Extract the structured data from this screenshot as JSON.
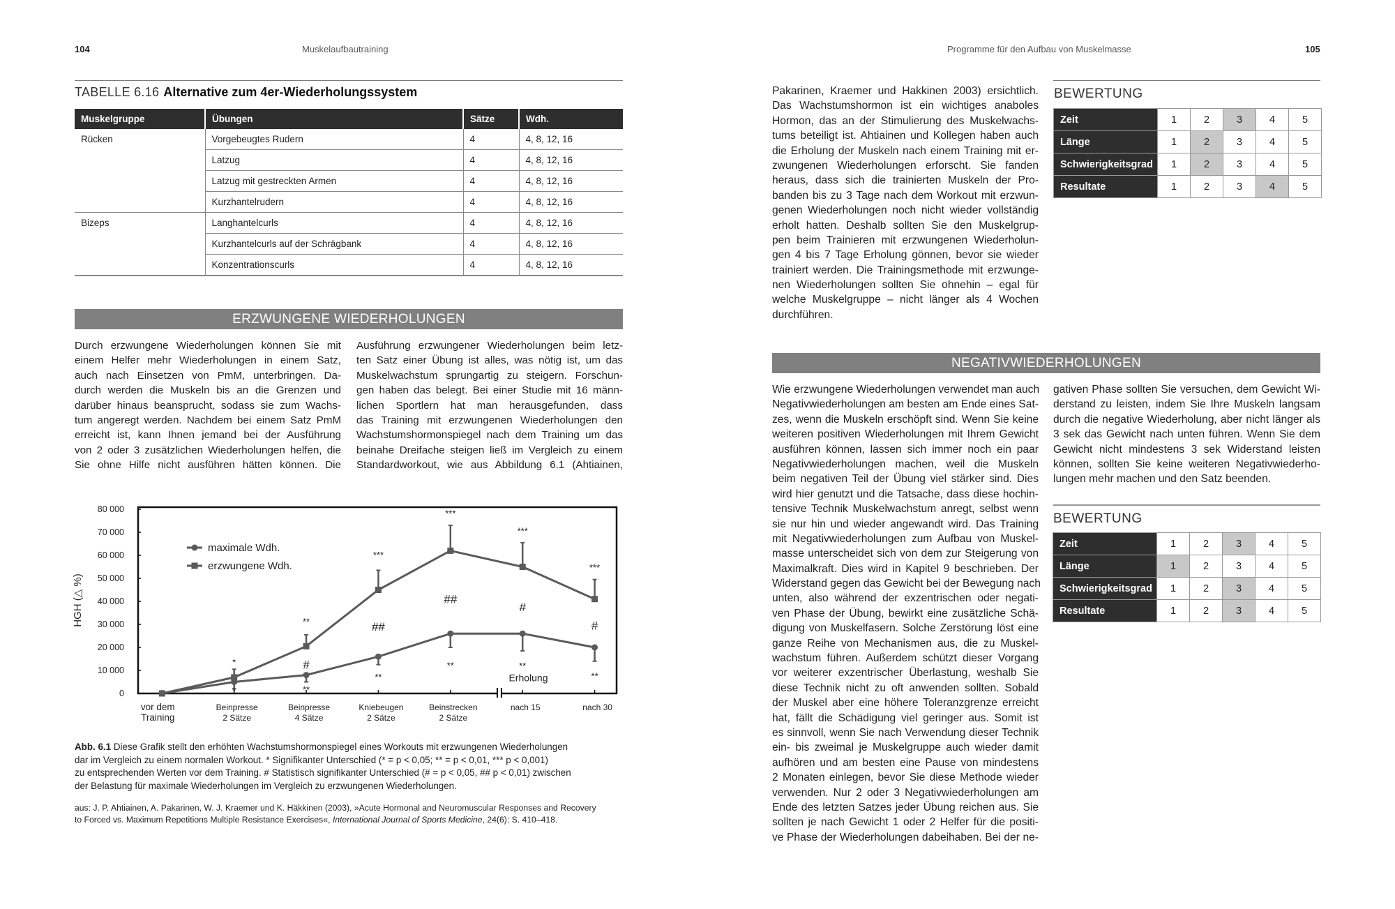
{
  "left_page": {
    "page_number": "104",
    "running_head": "Muskelaufbautraining",
    "table": {
      "prefix": "TABELLE 6.16",
      "title": "Alternative zum 4er-Wiederholungssystem",
      "headers": [
        "Muskelgruppe",
        "Übungen",
        "Sätze",
        "Wdh."
      ],
      "rows": [
        {
          "group": "Rücken",
          "exercise": "Vorgebeugtes Rudern",
          "sets": "4",
          "reps": "4, 8, 12, 16"
        },
        {
          "group": "",
          "exercise": "Latzug",
          "sets": "4",
          "reps": "4, 8, 12, 16"
        },
        {
          "group": "",
          "exercise": "Latzug mit gestreckten Armen",
          "sets": "4",
          "reps": "4, 8, 12, 16"
        },
        {
          "group": "",
          "exercise": "Kurzhantelrudern",
          "sets": "4",
          "reps": "4, 8, 12, 16"
        },
        {
          "group": "Bizeps",
          "exercise": "Langhantelcurls",
          "sets": "4",
          "reps": "4, 8, 12, 16"
        },
        {
          "group": "",
          "exercise": "Kurzhantelcurls auf der Schrägbank",
          "sets": "4",
          "reps": "4, 8, 12, 16"
        },
        {
          "group": "",
          "exercise": "Konzentrationscurls",
          "sets": "4",
          "reps": "4, 8, 12, 16"
        }
      ]
    },
    "section_title": "ERZWUNGENE WIEDERHOLUNGEN",
    "column1": [
      "Durch erzwungene Wiederholungen können Sie mit",
      "einem Helfer mehr Wiederholungen in einem Satz,",
      "auch nach Einsetzen von PmM, unterbringen. Da-",
      "durch werden die Muskeln bis an die Grenzen und",
      "darüber hinaus beansprucht, sodass sie zum Wachs-",
      "tum angeregt werden. Nachdem bei einem Satz PmM",
      "erreicht ist, kann Ihnen jemand bei der Ausführung",
      "von 2 oder 3 zusätzlichen Wiederholungen helfen, die",
      "Sie ohne Hilfe nicht ausführen hätten können. Die"
    ],
    "column2": [
      "Ausführung erzwungener Wiederholungen beim letz-",
      "ten Satz einer Übung ist alles, was nötig ist, um das",
      "Muskelwachstum sprungartig zu steigern. Forschun-",
      "gen haben das belegt. Bei einer Studie mit 16 männ-",
      "lichen Sportlern hat man herausgefunden, dass",
      "das Training mit erzwungenen Wiederholungen den",
      "Wachstumshormonspiegel nach dem Training um das",
      "beinahe Dreifache steigen ließ im Vergleich zu einem",
      "Standardworkout, wie aus Abbildung 6.1 (Ahtiainen,"
    ],
    "caption": {
      "label": "Abb. 6.1",
      "lines": [
        "Diese Grafik stellt den erhöhten Wachstumshormonspiegel eines Workouts mit erzwungenen Wiederholungen",
        "dar im Vergleich zu einem normalen Workout. * Signifikanter Unterschied (* = p < 0,05; ** = p < 0,01, *** p < 0,001)",
        "zu entsprechenden Werten vor dem Training. # Statistisch signifikanter Unterschied (# = p < 0,05, ## p < 0,01) zwischen",
        "der Belastung für maximale Wiederholungen im Vergleich zu erzwungenen Wiederholungen."
      ]
    },
    "source": {
      "line1": "aus: J. P. Ahtiainen, A. Pakarinen, W. J. Kraemer und K. Häkkinen (2003), »Acute Hormonal and Neuromuscular Responses and Recovery",
      "line2_start": "to Forced vs. Maximum Repetitions Multiple Resistance Exercises«, ",
      "journal": "International Journal of Sports Medicine",
      "line2_end": ", 24(6): S. 410–418."
    }
  },
  "chart_data": {
    "type": "line",
    "title": "",
    "xlabel": "",
    "ylabel": "HGH (△ %)",
    "ylim": [
      0,
      80000
    ],
    "yticks": [
      "0",
      "10 000",
      "20 000",
      "30 000",
      "40 000",
      "50 000",
      "60 000",
      "70 000",
      "80 000"
    ],
    "categories": [
      [
        "vor dem",
        "Training"
      ],
      [
        "Beinpresse",
        "2 Sätze"
      ],
      [
        "Beinpresse",
        "4 Sätze"
      ],
      [
        "Kniebeugen",
        "2 Sätze"
      ],
      [
        "Beinstrecken",
        "2 Sätze"
      ],
      [
        "nach 15",
        ""
      ],
      [
        "nach 30",
        ""
      ]
    ],
    "axis_break_after_index": 4,
    "legend_position": "top-left",
    "grid": false,
    "series": [
      {
        "name": "maximale Wdh.",
        "marker": "circle",
        "values": [
          0,
          5000,
          8000,
          16000,
          26000,
          26000,
          20000
        ],
        "error_low": [
          0,
          2000,
          5000,
          12500,
          20000,
          18500,
          14000
        ]
      },
      {
        "name": "erzwungene Wdh.",
        "marker": "square",
        "values": [
          0,
          7000,
          20500,
          45000,
          62000,
          55000,
          41000
        ],
        "error_high": [
          0,
          10500,
          25500,
          53500,
          73000,
          65500,
          49500
        ]
      }
    ],
    "annotations": [
      {
        "x": 1,
        "y": 13500,
        "text": "*"
      },
      {
        "x": 1,
        "y": 1000,
        "text": "*"
      },
      {
        "x": 2,
        "y": 31000,
        "text": "**"
      },
      {
        "x": 2,
        "y": 12000,
        "text": "#"
      },
      {
        "x": 2,
        "y": 1500,
        "text": "**"
      },
      {
        "x": 3,
        "y": 60000,
        "text": "***"
      },
      {
        "x": 3,
        "y": 28500,
        "text": "##"
      },
      {
        "x": 3,
        "y": 7000,
        "text": "**"
      },
      {
        "x": 4,
        "y": 78000,
        "text": "***"
      },
      {
        "x": 4,
        "y": 40500,
        "text": "##"
      },
      {
        "x": 4,
        "y": 12000,
        "text": "**"
      },
      {
        "x": 5,
        "y": 70500,
        "text": "***"
      },
      {
        "x": 5,
        "y": 37000,
        "text": "#"
      },
      {
        "x": 5,
        "y": 11800,
        "text": "**"
      },
      {
        "x": 5.08,
        "y": 6500,
        "text": "Erholung"
      },
      {
        "x": 6,
        "y": 54500,
        "text": "***"
      },
      {
        "x": 6,
        "y": 29000,
        "text": "#"
      },
      {
        "x": 6,
        "y": 7500,
        "text": "**"
      }
    ],
    "colors": {
      "lines": "#5a5a5a",
      "frame": "#111111"
    }
  },
  "right_page": {
    "page_number": "105",
    "running_head": "Programme für den Aufbau von Muskelmasse",
    "intro_column": [
      "Pakarinen, Kraemer und Hakkinen 2003) ersichtlich.",
      "Das Wachstumshormon ist ein wichtiges anaboles",
      "Hormon, das an der Stimulierung des Muskelwachs-",
      "tums beteiligt ist. Ahtiainen und Kollegen haben auch",
      "die Erholung der Muskeln nach einem Training mit er-",
      "zwungenen Wiederholungen erforscht. Sie fanden",
      "heraus, dass sich die trainierten Muskeln der Pro-",
      "banden bis zu 3 Tage nach dem Workout mit erzwun-",
      "genen Wiederholungen noch nicht wieder vollständig",
      "erholt hatten. Deshalb sollten Sie den Muskelgrup-",
      "pen beim Trainieren mit erzwungenen Wiederholun-",
      "gen 4 bis 7 Tage Erholung gönnen, bevor sie wieder",
      "trainiert werden. Die Trainingsmethode mit erzwunge-",
      "nen Wiederholungen sollten Sie ohnehin – egal für",
      "welche Muskelgruppe – nicht länger als 4 Wochen",
      "durchführen."
    ],
    "rating1": {
      "title": "BEWERTUNG",
      "scale": [
        "1",
        "2",
        "3",
        "4",
        "5"
      ],
      "rows": [
        {
          "label": "Zeit",
          "selected": 3
        },
        {
          "label": "Länge",
          "selected": 2
        },
        {
          "label": "Schwierigkeitsgrad",
          "selected": 2
        },
        {
          "label": "Resultate",
          "selected": 4
        }
      ]
    },
    "section_title": "NEGATIVWIEDERHOLUNGEN",
    "column1": [
      "Wie erzwungene Wiederholungen verwendet man auch",
      "Negativwiederholungen am besten am Ende eines Sat-",
      "zes, wenn die Muskeln erschöpft sind. Wenn Sie keine",
      "weiteren positiven Wiederholungen mit Ihrem Gewicht",
      "ausführen können, lassen sich immer noch ein paar",
      "Negativwiederholungen machen, weil die Muskeln",
      "beim negativen Teil der Übung viel stärker sind. Dies",
      "wird hier genutzt und die Tatsache, dass diese hochin-",
      "tensive Technik Muskelwachstum anregt, selbst wenn",
      "sie nur hin und wieder angewandt wird. Das Training",
      "mit Negativwiederholungen zum Aufbau von Muskel-",
      "masse unterscheidet sich von dem zur Steigerung von",
      "Maximalkraft. Dies wird in Kapitel 9 beschrieben. Der",
      "Widerstand gegen das Gewicht bei der Bewegung nach",
      "unten, also während der exzentrischen oder negati-",
      "ven Phase der Übung, bewirkt eine zusätzliche Schä-",
      "digung von Muskelfasern. Solche Zerstörung löst eine",
      "ganze Reihe von Mechanismen aus, die zu Muskel-",
      "wachstum führen. Außerdem schützt dieser Vorgang",
      "vor weiterer exzentrischer Überlastung, weshalb Sie",
      "diese Technik nicht zu oft anwenden sollten. Sobald",
      "der Muskel aber eine höhere Toleranzgrenze erreicht",
      "hat, fällt die Schädigung viel geringer aus. Somit ist",
      "es sinnvoll, wenn Sie nach Verwendung dieser Technik",
      "ein- bis zweimal je Muskelgruppe auch wieder damit",
      "aufhören und am besten eine Pause von mindestens",
      "2 Monaten einlegen, bevor Sie diese Methode wieder",
      "verwenden. Nur 2 oder 3 Negativwiederholungen am",
      "Ende des letzten Satzes jeder Übung reichen aus. Sie",
      "sollten je nach Gewicht 1 oder 2 Helfer für die positi-",
      "ve Phase der Wiederholungen dabeihaben. Bei der ne-"
    ],
    "column2": [
      "gativen Phase sollten Sie versuchen, dem Gewicht Wi-",
      "derstand zu leisten, indem Sie Ihre Muskeln langsam",
      "durch die negative Wiederholung, aber nicht länger als",
      "3 sek das Gewicht nach unten führen. Wenn Sie dem",
      "Gewicht nicht mindestens 3 sek Widerstand leisten",
      "können, sollten Sie keine weiteren Negativwiederho-",
      "lungen mehr machen und den Satz beenden."
    ],
    "rating2": {
      "title": "BEWERTUNG",
      "scale": [
        "1",
        "2",
        "3",
        "4",
        "5"
      ],
      "rows": [
        {
          "label": "Zeit",
          "selected": 3
        },
        {
          "label": "Länge",
          "selected": 1
        },
        {
          "label": "Schwierigkeitsgrad",
          "selected": 3
        },
        {
          "label": "Resultate",
          "selected": 3
        }
      ]
    }
  }
}
